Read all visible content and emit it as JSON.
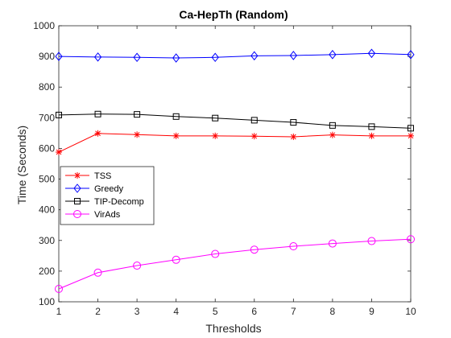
{
  "chart_data": {
    "type": "line",
    "title": "Ca-HepTh (Random)",
    "xlabel": "Thresholds",
    "ylabel": "Time (Seconds)",
    "xlim": [
      1,
      10
    ],
    "ylim": [
      100,
      1000
    ],
    "x_ticks": [
      "1",
      "2",
      "3",
      "4",
      "5",
      "6",
      "7",
      "8",
      "9",
      "10"
    ],
    "y_ticks": [
      "100",
      "200",
      "300",
      "400",
      "500",
      "600",
      "700",
      "800",
      "900",
      "1000"
    ],
    "grid": false,
    "legend_position": "middle-left",
    "x": [
      1,
      2,
      3,
      4,
      5,
      6,
      7,
      8,
      9,
      10
    ],
    "series": [
      {
        "name": "TSS",
        "color": "#ff0000",
        "marker": "asterisk",
        "values": [
          588,
          649,
          645,
          641,
          641,
          640,
          638,
          644,
          641,
          641
        ]
      },
      {
        "name": "Greedy",
        "color": "#0000ff",
        "marker": "diamond",
        "values": [
          900,
          898,
          897,
          895,
          897,
          902,
          903,
          906,
          910,
          906
        ]
      },
      {
        "name": "TIP-Decomp",
        "color": "#000000",
        "marker": "square",
        "values": [
          709,
          712,
          711,
          704,
          699,
          692,
          685,
          675,
          671,
          666
        ]
      },
      {
        "name": "VirAds",
        "color": "#ff00ff",
        "marker": "circle",
        "values": [
          142,
          195,
          218,
          237,
          256,
          270,
          281,
          290,
          298,
          304
        ]
      }
    ]
  }
}
